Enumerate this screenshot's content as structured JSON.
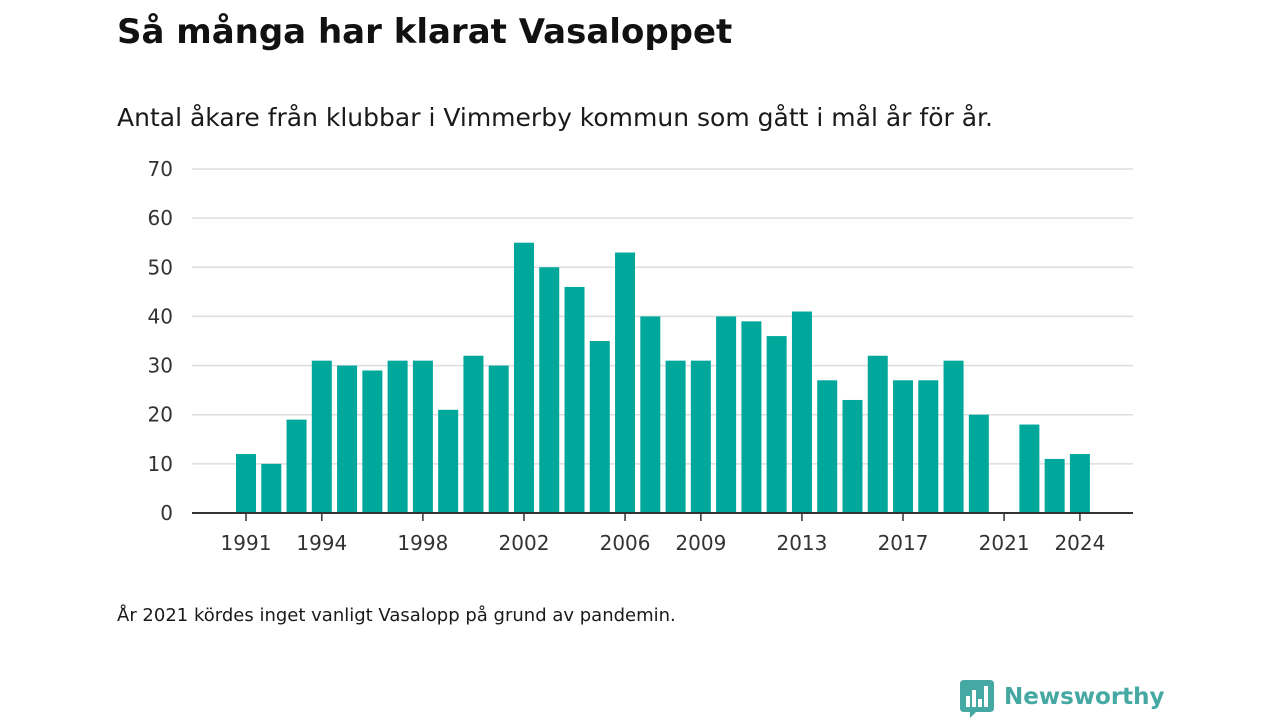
{
  "chart_data": {
    "type": "bar",
    "title": "Så många har klarat Vasaloppet",
    "subtitle": "Antal åkare från klubbar i Vimmerby kommun som gått i mål år för år.",
    "x": [
      1991,
      1992,
      1993,
      1994,
      1995,
      1996,
      1997,
      1998,
      1999,
      2000,
      2001,
      2002,
      2003,
      2004,
      2005,
      2006,
      2007,
      2008,
      2009,
      2010,
      2011,
      2012,
      2013,
      2014,
      2015,
      2016,
      2017,
      2018,
      2019,
      2020,
      2021,
      2022,
      2023,
      2024
    ],
    "values": [
      12,
      10,
      19,
      31,
      30,
      29,
      31,
      31,
      21,
      32,
      30,
      55,
      50,
      46,
      35,
      53,
      40,
      31,
      31,
      40,
      39,
      36,
      41,
      27,
      23,
      32,
      27,
      27,
      31,
      20,
      null,
      18,
      11,
      12
    ],
    "x_tick_labels": [
      "1991",
      "1994",
      "1998",
      "2002",
      "2006",
      "2009",
      "2013",
      "2017",
      "2021",
      "2024"
    ],
    "y_ticks": [
      0,
      10,
      20,
      30,
      40,
      50,
      60,
      70
    ],
    "ylim": [
      0,
      70
    ],
    "grid": true,
    "bar_color": "#00a89b",
    "grid_color": "#dddddd",
    "axis_color": "#333333"
  },
  "footnote": "År 2021 kördes inget vanligt Vasalopp på grund av pandemin.",
  "brand": {
    "name": "Newsworthy",
    "icon": "newsworthy-logo-icon",
    "color": "#45a8a3"
  }
}
